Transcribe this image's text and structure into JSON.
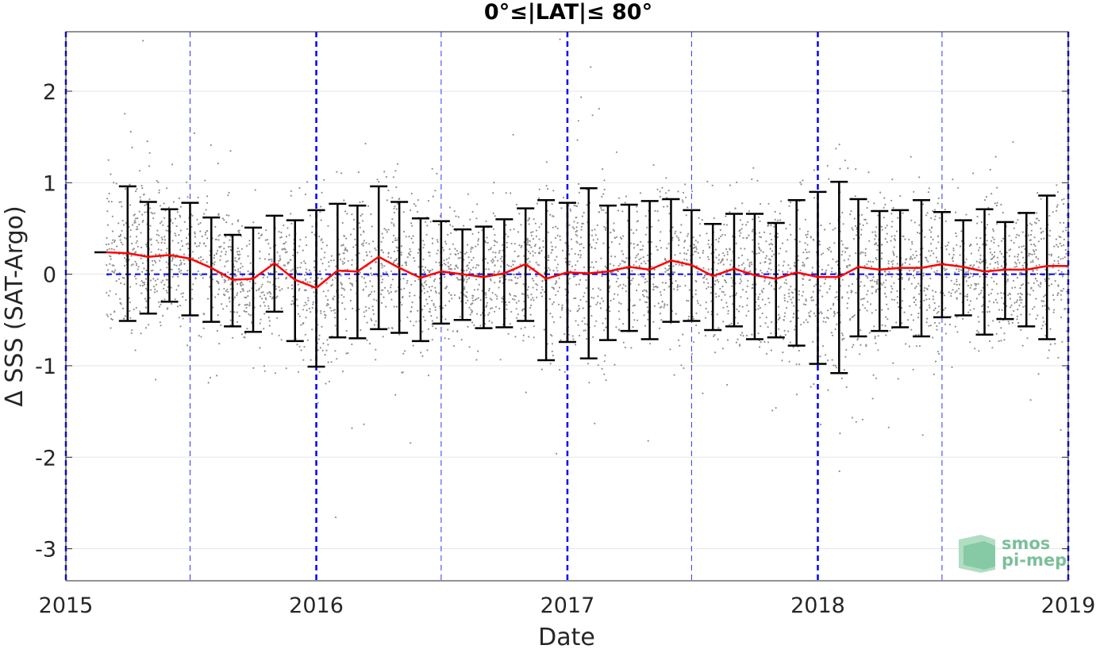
{
  "chart_data": {
    "type": "scatter",
    "title": "0°≤|LAT|≤ 80°",
    "xlabel": "Date",
    "ylabel": "Δ SSS (SAT-Argo)",
    "xlim": [
      "2015-01-01",
      "2019-01-01"
    ],
    "ylim": [
      -3.35,
      2.65
    ],
    "x_ticks": [
      "2015",
      "2016",
      "2017",
      "2018",
      "2019"
    ],
    "y_ticks": [
      -3,
      -2,
      -1,
      0,
      1,
      2
    ],
    "y_tick_labels": [
      "-3",
      "-2",
      "-1",
      "0",
      "1",
      "2"
    ],
    "grid": true,
    "colors": {
      "points": "#909090",
      "mean_line": "#ff0000",
      "error_bars": "#000000",
      "zero_line": "#0000ff",
      "year_lines": "#0000ff",
      "grid": "#e6e6e6"
    },
    "year_lines": [
      "2015-01-01",
      "2016-01-01",
      "2017-01-01",
      "2018-01-01",
      "2019-01-01"
    ],
    "half_year_lines": [
      "2015-07-01",
      "2016-07-01",
      "2017-07-01",
      "2018-07-01"
    ],
    "monthly": {
      "x": [
        "2015-03",
        "2015-04",
        "2015-05",
        "2015-06",
        "2015-07",
        "2015-08",
        "2015-09",
        "2015-10",
        "2015-11",
        "2015-12",
        "2016-01",
        "2016-02",
        "2016-03",
        "2016-04",
        "2016-05",
        "2016-06",
        "2016-07",
        "2016-08",
        "2016-09",
        "2016-10",
        "2016-11",
        "2016-12",
        "2017-01",
        "2017-02",
        "2017-03",
        "2017-04",
        "2017-05",
        "2017-06",
        "2017-07",
        "2017-08",
        "2017-09",
        "2017-10",
        "2017-11",
        "2017-12",
        "2018-01",
        "2018-02",
        "2018-03",
        "2018-04",
        "2018-05",
        "2018-06",
        "2018-07",
        "2018-08",
        "2018-09",
        "2018-10",
        "2018-11",
        "2018-12"
      ],
      "mean": [
        0.24,
        0.23,
        0.19,
        0.21,
        0.17,
        0.07,
        -0.06,
        -0.05,
        0.12,
        -0.06,
        -0.15,
        0.04,
        0.03,
        0.19,
        0.07,
        -0.04,
        0.03,
        0.0,
        -0.03,
        0.01,
        0.11,
        -0.05,
        0.02,
        0.01,
        0.03,
        0.08,
        0.05,
        0.15,
        0.1,
        -0.02,
        0.06,
        -0.01,
        -0.05,
        0.02,
        -0.03,
        -0.03,
        0.08,
        0.05,
        0.07,
        0.07,
        0.11,
        0.08,
        0.03,
        0.05,
        0.05,
        0.09
      ],
      "upper": [
        null,
        0.96,
        0.79,
        0.71,
        0.78,
        0.62,
        0.43,
        0.51,
        0.64,
        0.59,
        0.7,
        0.77,
        0.75,
        0.96,
        0.79,
        0.61,
        0.58,
        0.49,
        0.52,
        0.6,
        0.72,
        0.81,
        0.78,
        0.94,
        0.75,
        0.76,
        0.8,
        0.82,
        0.7,
        0.55,
        0.66,
        0.66,
        0.56,
        0.81,
        0.9,
        1.01,
        0.82,
        0.69,
        0.7,
        0.81,
        0.68,
        0.59,
        0.71,
        0.57,
        0.67,
        0.86
      ],
      "lower": [
        null,
        -0.51,
        -0.43,
        -0.3,
        -0.45,
        -0.52,
        -0.57,
        -0.63,
        -0.41,
        -0.73,
        -1.01,
        -0.69,
        -0.7,
        -0.6,
        -0.64,
        -0.73,
        -0.54,
        -0.5,
        -0.59,
        -0.58,
        -0.51,
        -0.94,
        -0.74,
        -0.92,
        -0.72,
        -0.62,
        -0.71,
        -0.52,
        -0.51,
        -0.61,
        -0.57,
        -0.71,
        -0.69,
        -0.78,
        -0.98,
        -1.08,
        -0.68,
        -0.62,
        -0.58,
        -0.68,
        -0.47,
        -0.45,
        -0.66,
        -0.49,
        -0.57,
        -0.71
      ]
    },
    "scatter_description_points": 4200
  },
  "logo": {
    "line1": "smos",
    "line2": "pi-mep"
  }
}
